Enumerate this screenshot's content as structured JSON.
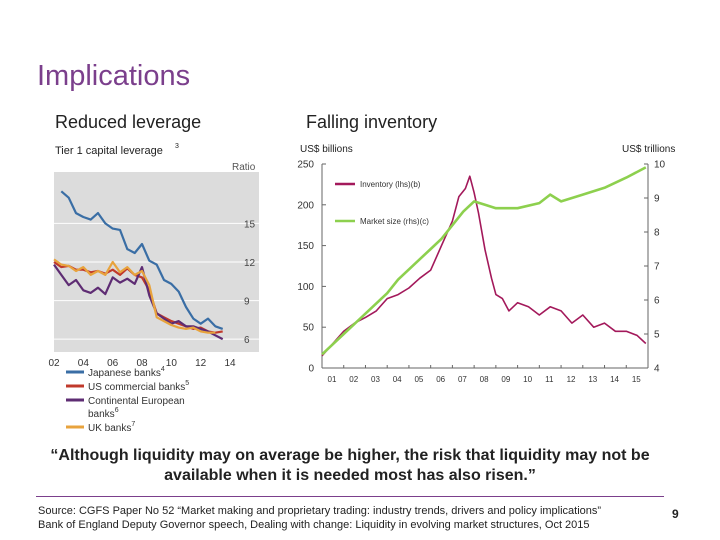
{
  "slide": {
    "title": "Implications",
    "left_subtitle": "Reduced leverage",
    "right_subtitle": "Falling inventory",
    "quote": "“Although liquidity may on average be higher, the risk that liquidity may not be available when it is needed most has also risen.”",
    "source_line1": "Source: CGFS Paper No 52 “Market making and proprietary trading: industry trends, drivers and policy implications”",
    "source_line2": "Bank of England Deputy Governor speech, Dealing with change: Liquidity in evolving market structures, Oct 2015",
    "page_number": "9"
  },
  "chart_data": [
    {
      "type": "line",
      "title": "Tier 1 capital leverage",
      "title_note": "3",
      "ylabel": "Ratio",
      "ylim": [
        5,
        19
      ],
      "yticks": [
        6,
        9,
        12,
        15
      ],
      "xlim": [
        2002,
        2014
      ],
      "xticks": [
        2002,
        2004,
        2006,
        2008,
        2010,
        2012,
        2014
      ],
      "xtick_labels": [
        "02",
        "04",
        "06",
        "08",
        "10",
        "12",
        "14"
      ],
      "legend_position": "bottom",
      "series": [
        {
          "name": "Japanese banks",
          "note": "4",
          "color": "#3a6ea5",
          "x": [
            2002.5,
            2003.0,
            2003.5,
            2004.0,
            2004.5,
            2005.0,
            2005.5,
            2006.0,
            2006.5,
            2007.0,
            2007.5,
            2008.0,
            2008.5,
            2009.0,
            2009.5,
            2010.0,
            2010.5,
            2011.0,
            2011.5,
            2012.0,
            2012.5,
            2013.0,
            2013.5
          ],
          "y": [
            17.5,
            17.0,
            15.8,
            15.5,
            15.3,
            15.8,
            15.0,
            14.6,
            14.5,
            13.0,
            12.7,
            13.4,
            12.1,
            11.8,
            10.6,
            10.3,
            9.7,
            8.5,
            7.6,
            7.2,
            7.6,
            7.0,
            6.8
          ]
        },
        {
          "name": "US commercial banks",
          "note": "5",
          "color": "#c0392b",
          "x": [
            2002.0,
            2002.5,
            2003.0,
            2003.5,
            2004.0,
            2004.5,
            2005.0,
            2005.5,
            2006.0,
            2006.5,
            2007.0,
            2007.5,
            2008.0,
            2008.5,
            2009.0,
            2009.5,
            2010.0,
            2010.5,
            2011.0,
            2011.5,
            2012.0,
            2012.5,
            2013.0,
            2013.5
          ],
          "y": [
            12.0,
            11.6,
            11.7,
            11.4,
            11.4,
            11.2,
            11.3,
            11.1,
            11.4,
            11.0,
            11.5,
            11.0,
            10.8,
            9.8,
            8.0,
            7.7,
            7.4,
            7.2,
            7.0,
            6.8,
            6.9,
            6.6,
            6.5,
            6.6
          ]
        },
        {
          "name": "Continental European banks",
          "note": "6",
          "color": "#5e2c73",
          "x": [
            2002.0,
            2002.5,
            2003.0,
            2003.5,
            2004.0,
            2004.5,
            2005.0,
            2005.5,
            2006.0,
            2006.5,
            2007.0,
            2007.5,
            2008.0,
            2008.5,
            2009.0,
            2009.5,
            2010.0,
            2010.5,
            2011.0,
            2011.5,
            2012.0,
            2012.5,
            2013.0,
            2013.5
          ],
          "y": [
            11.8,
            11.0,
            10.2,
            10.6,
            9.8,
            9.6,
            10.0,
            9.5,
            10.8,
            10.4,
            10.7,
            10.3,
            11.6,
            9.4,
            8.0,
            7.6,
            7.2,
            7.4,
            7.0,
            7.0,
            6.8,
            6.6,
            6.3,
            6.0
          ]
        },
        {
          "name": "UK banks",
          "note": "7",
          "color": "#e8a33d",
          "x": [
            2002.0,
            2002.5,
            2003.0,
            2003.5,
            2004.0,
            2004.5,
            2005.0,
            2005.5,
            2006.0,
            2006.5,
            2007.0,
            2007.5,
            2008.0,
            2008.5,
            2009.0,
            2009.5,
            2010.0,
            2010.5,
            2011.0,
            2011.5,
            2012.0,
            2012.5,
            2013.0
          ],
          "y": [
            12.2,
            11.8,
            11.7,
            11.3,
            11.6,
            11.0,
            11.3,
            11.0,
            12.0,
            11.2,
            11.6,
            11.0,
            11.3,
            10.2,
            7.7,
            7.4,
            7.1,
            6.9,
            6.8,
            6.9,
            6.6,
            6.5,
            6.5
          ]
        }
      ]
    },
    {
      "type": "line",
      "left_unit": "US$ billions",
      "right_unit": "US$ trillions",
      "ylim": [
        0,
        250
      ],
      "yticks": [
        0,
        50,
        100,
        150,
        200,
        250
      ],
      "y2lim": [
        4,
        10
      ],
      "y2ticks": [
        4,
        5,
        6,
        7,
        8,
        9,
        10
      ],
      "xlim": [
        2001,
        2016
      ],
      "xticks": [
        2001,
        2002,
        2003,
        2004,
        2005,
        2006,
        2007,
        2008,
        2009,
        2010,
        2011,
        2012,
        2013,
        2014,
        2015
      ],
      "xtick_labels": [
        "01",
        "02",
        "03",
        "04",
        "05",
        "06",
        "07",
        "08",
        "09",
        "10",
        "11",
        "12",
        "13",
        "14",
        "15"
      ],
      "legend_position": "top-left",
      "series": [
        {
          "name": "Inventory (lhs)",
          "note": "(b)",
          "axis": "left",
          "color": "#a3195b",
          "x": [
            2001.0,
            2001.5,
            2002.0,
            2002.5,
            2003.0,
            2003.5,
            2004.0,
            2004.5,
            2005.0,
            2005.5,
            2006.0,
            2006.5,
            2007.0,
            2007.3,
            2007.6,
            2007.8,
            2008.0,
            2008.2,
            2008.5,
            2008.8,
            2009.0,
            2009.3,
            2009.6,
            2010.0,
            2010.5,
            2011.0,
            2011.5,
            2012.0,
            2012.5,
            2013.0,
            2013.5,
            2014.0,
            2014.5,
            2015.0,
            2015.5,
            2015.9
          ],
          "y": [
            15,
            30,
            45,
            55,
            62,
            70,
            85,
            90,
            98,
            110,
            120,
            150,
            180,
            210,
            220,
            235,
            215,
            190,
            145,
            110,
            90,
            85,
            70,
            80,
            75,
            65,
            75,
            70,
            55,
            65,
            50,
            55,
            45,
            45,
            40,
            30
          ]
        },
        {
          "name": "Market size (rhs)",
          "note": "(c)",
          "axis": "right",
          "color": "#8dd04e",
          "x": [
            2001.0,
            2001.5,
            2002.0,
            2002.5,
            2003.0,
            2003.5,
            2004.0,
            2004.5,
            2005.0,
            2005.5,
            2006.0,
            2006.5,
            2007.0,
            2007.5,
            2008.0,
            2008.5,
            2009.0,
            2009.5,
            2010.0,
            2011.0,
            2011.5,
            2012.0,
            2013.0,
            2014.0,
            2015.0,
            2015.9
          ],
          "y": [
            4.4,
            4.7,
            5.0,
            5.3,
            5.6,
            5.9,
            6.2,
            6.6,
            6.9,
            7.2,
            7.5,
            7.8,
            8.2,
            8.6,
            8.9,
            8.8,
            8.7,
            8.7,
            8.7,
            8.85,
            9.1,
            8.9,
            9.1,
            9.3,
            9.6,
            9.9
          ]
        }
      ]
    }
  ]
}
